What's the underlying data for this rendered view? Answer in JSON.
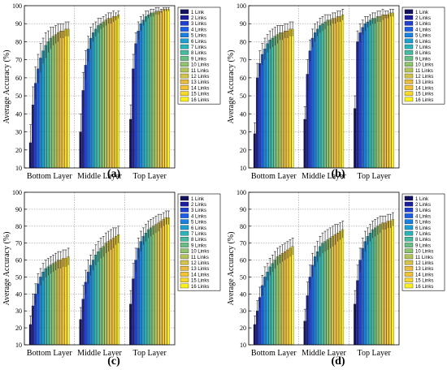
{
  "figure": {
    "panels": [
      "(a)",
      "(b)",
      "(c)",
      "(d)"
    ]
  },
  "chart_data": [
    {
      "type": "bar",
      "panel_label": "(a)",
      "title": "",
      "xlabel": "",
      "ylabel": "Average Accuracy (%)",
      "ylim": [
        10,
        100
      ],
      "yticks": [
        10,
        20,
        30,
        40,
        50,
        60,
        70,
        80,
        90,
        100
      ],
      "grid": true,
      "legend_position": "top-right",
      "categories": [
        "Bottom Layer",
        "Middle Layer",
        "Top Layer"
      ],
      "series": [
        {
          "name": "1 Link",
          "values": [
            24,
            30,
            37
          ],
          "errors": [
            10,
            10,
            8
          ]
        },
        {
          "name": "2 Links",
          "values": [
            45,
            53,
            65
          ],
          "errors": [
            10,
            10,
            8
          ]
        },
        {
          "name": "3 Links",
          "values": [
            57,
            67,
            79
          ],
          "errors": [
            9,
            8,
            6
          ]
        },
        {
          "name": "4 Links",
          "values": [
            65,
            76,
            86
          ],
          "errors": [
            8,
            7,
            5
          ]
        },
        {
          "name": "5 Links",
          "values": [
            71,
            82,
            90
          ],
          "errors": [
            8,
            6,
            4
          ]
        },
        {
          "name": "6 Links",
          "values": [
            75,
            85,
            92
          ],
          "errors": [
            7,
            5,
            3
          ]
        },
        {
          "name": "7 Links",
          "values": [
            78,
            87,
            94
          ],
          "errors": [
            7,
            4,
            3
          ]
        },
        {
          "name": "8 Links",
          "values": [
            80,
            89,
            95
          ],
          "errors": [
            6,
            4,
            2
          ]
        },
        {
          "name": "9 Links",
          "values": [
            82,
            90,
            96
          ],
          "errors": [
            6,
            3,
            2
          ]
        },
        {
          "name": "10 Links",
          "values": [
            83,
            91,
            96
          ],
          "errors": [
            5,
            3,
            2
          ]
        },
        {
          "name": "11 Links",
          "values": [
            84,
            92,
            97
          ],
          "errors": [
            5,
            3,
            2
          ]
        },
        {
          "name": "12 Links",
          "values": [
            85,
            93,
            97
          ],
          "errors": [
            5,
            3,
            2
          ]
        },
        {
          "name": "13 Links",
          "values": [
            86,
            93,
            97
          ],
          "errors": [
            4,
            3,
            1
          ]
        },
        {
          "name": "14 Links",
          "values": [
            86,
            94,
            98
          ],
          "errors": [
            4,
            3,
            1
          ]
        },
        {
          "name": "15 Links",
          "values": [
            87,
            94,
            98
          ],
          "errors": [
            4,
            2,
            1
          ]
        },
        {
          "name": "16 Links",
          "values": [
            87,
            95,
            98
          ],
          "errors": [
            4,
            2,
            1
          ]
        }
      ]
    },
    {
      "type": "bar",
      "panel_label": "(b)",
      "title": "",
      "xlabel": "",
      "ylabel": "Average Accuracy (%)",
      "ylim": [
        10,
        100
      ],
      "yticks": [
        10,
        20,
        30,
        40,
        50,
        60,
        70,
        80,
        90,
        100
      ],
      "grid": true,
      "legend_position": "top-right",
      "categories": [
        "Bottom Layer",
        "Middle Layer",
        "Top Layer"
      ],
      "series": [
        {
          "name": "1 Link",
          "values": [
            29,
            37,
            43
          ],
          "errors": [
            6,
            7,
            7
          ]
        },
        {
          "name": "2 Links",
          "values": [
            60,
            62,
            80
          ],
          "errors": [
            8,
            8,
            6
          ]
        },
        {
          "name": "3 Links",
          "values": [
            68,
            75,
            85
          ],
          "errors": [
            7,
            6,
            5
          ]
        },
        {
          "name": "4 Links",
          "values": [
            73,
            82,
            88
          ],
          "errors": [
            6,
            5,
            4
          ]
        },
        {
          "name": "5 Links",
          "values": [
            76,
            85,
            90
          ],
          "errors": [
            6,
            5,
            4
          ]
        },
        {
          "name": "6 Links",
          "values": [
            79,
            87,
            91
          ],
          "errors": [
            5,
            4,
            3
          ]
        },
        {
          "name": "7 Links",
          "values": [
            81,
            89,
            92
          ],
          "errors": [
            5,
            4,
            3
          ]
        },
        {
          "name": "8 Links",
          "values": [
            82,
            90,
            93
          ],
          "errors": [
            5,
            4,
            3
          ]
        },
        {
          "name": "9 Links",
          "values": [
            83,
            91,
            93
          ],
          "errors": [
            5,
            4,
            3
          ]
        },
        {
          "name": "10 Links",
          "values": [
            84,
            92,
            94
          ],
          "errors": [
            5,
            3,
            3
          ]
        },
        {
          "name": "11 Links",
          "values": [
            85,
            92,
            94
          ],
          "errors": [
            4,
            3,
            3
          ]
        },
        {
          "name": "12 Links",
          "values": [
            85,
            93,
            95
          ],
          "errors": [
            4,
            3,
            3
          ]
        },
        {
          "name": "13 Links",
          "values": [
            86,
            93,
            95
          ],
          "errors": [
            4,
            3,
            2
          ]
        },
        {
          "name": "14 Links",
          "values": [
            86,
            94,
            95
          ],
          "errors": [
            4,
            3,
            2
          ]
        },
        {
          "name": "15 Links",
          "values": [
            87,
            94,
            96
          ],
          "errors": [
            4,
            3,
            2
          ]
        },
        {
          "name": "16 Links",
          "values": [
            87,
            95,
            96
          ],
          "errors": [
            4,
            3,
            2
          ]
        }
      ]
    },
    {
      "type": "bar",
      "panel_label": "(c)",
      "title": "",
      "xlabel": "",
      "ylabel": "Average Accuracy (%)",
      "ylim": [
        10,
        100
      ],
      "yticks": [
        10,
        20,
        30,
        40,
        50,
        60,
        70,
        80,
        90,
        100
      ],
      "grid": true,
      "legend_position": "top-right",
      "categories": [
        "Bottom Layer",
        "Middle Layer",
        "Top Layer"
      ],
      "series": [
        {
          "name": "1 Link",
          "values": [
            22,
            25,
            34
          ],
          "errors": [
            5,
            7,
            8
          ]
        },
        {
          "name": "2 Links",
          "values": [
            33,
            37,
            49
          ],
          "errors": [
            7,
            8,
            9
          ]
        },
        {
          "name": "3 Links",
          "values": [
            40,
            47,
            60
          ],
          "errors": [
            6,
            7,
            7
          ]
        },
        {
          "name": "4 Links",
          "values": [
            46,
            53,
            67
          ],
          "errors": [
            6,
            7,
            6
          ]
        },
        {
          "name": "5 Links",
          "values": [
            50,
            57,
            71
          ],
          "errors": [
            5,
            6,
            6
          ]
        },
        {
          "name": "6 Links",
          "values": [
            53,
            60,
            74
          ],
          "errors": [
            5,
            6,
            5
          ]
        },
        {
          "name": "7 Links",
          "values": [
            55,
            63,
            76
          ],
          "errors": [
            5,
            6,
            5
          ]
        },
        {
          "name": "8 Links",
          "values": [
            56,
            65,
            78
          ],
          "errors": [
            5,
            6,
            5
          ]
        },
        {
          "name": "9 Links",
          "values": [
            57,
            67,
            79
          ],
          "errors": [
            5,
            6,
            5
          ]
        },
        {
          "name": "10 Links",
          "values": [
            58,
            68,
            80
          ],
          "errors": [
            5,
            6,
            5
          ]
        },
        {
          "name": "11 Links",
          "values": [
            59,
            70,
            81
          ],
          "errors": [
            5,
            6,
            5
          ]
        },
        {
          "name": "12 Links",
          "values": [
            60,
            71,
            82
          ],
          "errors": [
            5,
            6,
            5
          ]
        },
        {
          "name": "13 Links",
          "values": [
            60,
            72,
            83
          ],
          "errors": [
            5,
            6,
            4
          ]
        },
        {
          "name": "14 Links",
          "values": [
            61,
            73,
            84
          ],
          "errors": [
            5,
            6,
            4
          ]
        },
        {
          "name": "15 Links",
          "values": [
            61,
            74,
            85
          ],
          "errors": [
            5,
            5,
            4
          ]
        },
        {
          "name": "16 Links",
          "values": [
            62,
            75,
            85
          ],
          "errors": [
            5,
            5,
            4
          ]
        }
      ]
    },
    {
      "type": "bar",
      "panel_label": "(d)",
      "title": "",
      "xlabel": "",
      "ylabel": "Average Accuracy (%)",
      "ylim": [
        10,
        100
      ],
      "yticks": [
        10,
        20,
        30,
        40,
        50,
        60,
        70,
        80,
        90,
        100
      ],
      "grid": true,
      "legend_position": "top-right",
      "categories": [
        "Bottom Layer",
        "Middle Layer",
        "Top Layer"
      ],
      "series": [
        {
          "name": "1 Link",
          "values": [
            22,
            24,
            34
          ],
          "errors": [
            5,
            7,
            8
          ]
        },
        {
          "name": "2 Links",
          "values": [
            30,
            39,
            48
          ],
          "errors": [
            6,
            8,
            9
          ]
        },
        {
          "name": "3 Links",
          "values": [
            38,
            50,
            60
          ],
          "errors": [
            6,
            7,
            7
          ]
        },
        {
          "name": "4 Links",
          "values": [
            45,
            57,
            67
          ],
          "errors": [
            6,
            7,
            6
          ]
        },
        {
          "name": "5 Links",
          "values": [
            50,
            62,
            71
          ],
          "errors": [
            6,
            6,
            6
          ]
        },
        {
          "name": "6 Links",
          "values": [
            53,
            65,
            74
          ],
          "errors": [
            5,
            6,
            5
          ]
        },
        {
          "name": "7 Links",
          "values": [
            56,
            68,
            76
          ],
          "errors": [
            5,
            6,
            5
          ]
        },
        {
          "name": "8 Links",
          "values": [
            58,
            70,
            78
          ],
          "errors": [
            5,
            6,
            5
          ]
        },
        {
          "name": "9 Links",
          "values": [
            60,
            71,
            79
          ],
          "errors": [
            5,
            6,
            5
          ]
        },
        {
          "name": "10 Links",
          "values": [
            62,
            72,
            80
          ],
          "errors": [
            5,
            6,
            5
          ]
        },
        {
          "name": "11 Links",
          "values": [
            63,
            73,
            81
          ],
          "errors": [
            5,
            6,
            5
          ]
        },
        {
          "name": "12 Links",
          "values": [
            64,
            74,
            82
          ],
          "errors": [
            5,
            6,
            4
          ]
        },
        {
          "name": "13 Links",
          "values": [
            65,
            75,
            82
          ],
          "errors": [
            5,
            6,
            4
          ]
        },
        {
          "name": "14 Links",
          "values": [
            66,
            76,
            83
          ],
          "errors": [
            5,
            5,
            4
          ]
        },
        {
          "name": "15 Links",
          "values": [
            67,
            77,
            83
          ],
          "errors": [
            5,
            5,
            4
          ]
        },
        {
          "name": "16 Links",
          "values": [
            68,
            78,
            84
          ],
          "errors": [
            5,
            5,
            4
          ]
        }
      ]
    }
  ],
  "colors": {
    "series": [
      "#14125e",
      "#1b1f9c",
      "#1f3fcf",
      "#1a5fe6",
      "#1780e0",
      "#1f9ed0",
      "#2bb3b8",
      "#45bba0",
      "#68bf86",
      "#8ec46d",
      "#b0c45a",
      "#d0c24c",
      "#e8bc41",
      "#f4c235",
      "#f8d82a",
      "#fbef1f"
    ],
    "grid": "#9a9a9a",
    "axis": "#000000",
    "error_bar": "#222222",
    "background": "#ffffff"
  }
}
